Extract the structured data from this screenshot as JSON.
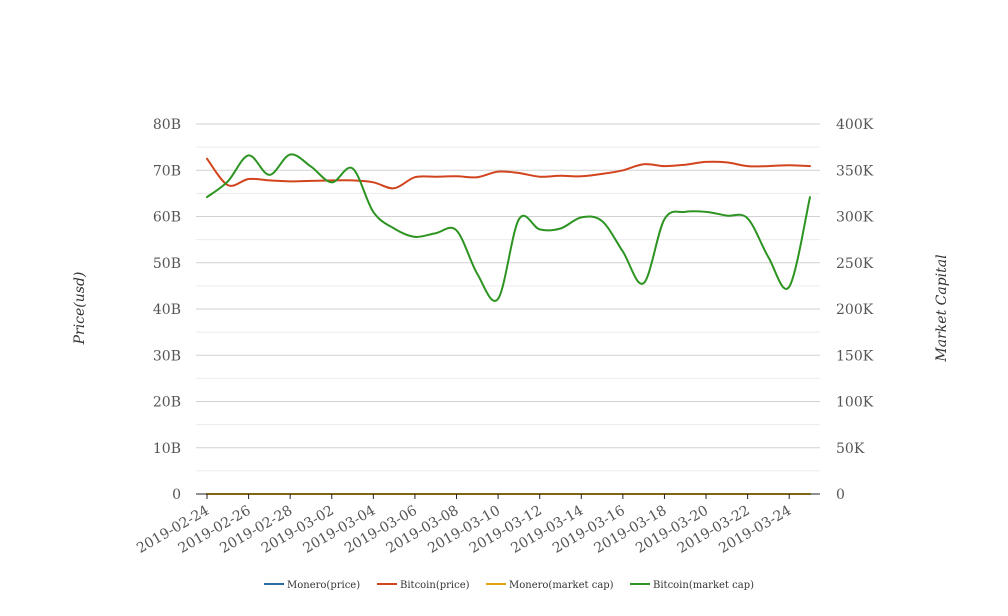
{
  "chart_data": {
    "type": "line",
    "left_axis": {
      "title": "Price(usd)",
      "ticks": [
        "0",
        "10B",
        "20B",
        "30B",
        "40B",
        "50B",
        "60B",
        "70B",
        "80B"
      ],
      "range": [
        0,
        80
      ]
    },
    "right_axis": {
      "title": "Market Capital",
      "ticks": [
        "0",
        "50K",
        "100K",
        "150K",
        "200K",
        "250K",
        "300K",
        "350K",
        "400K"
      ],
      "range": [
        0,
        400000
      ]
    },
    "x_tick_labels": [
      "2019-02-24",
      "2019-02-26",
      "2019-02-28",
      "2019-03-02",
      "2019-03-04",
      "2019-03-06",
      "2019-03-08",
      "2019-03-10",
      "2019-03-12",
      "2019-03-14",
      "2019-03-16",
      "2019-03-18",
      "2019-03-20",
      "2019-03-22",
      "2019-03-24"
    ],
    "x": [
      "2019-02-24",
      "2019-02-25",
      "2019-02-26",
      "2019-02-27",
      "2019-02-28",
      "2019-03-01",
      "2019-03-02",
      "2019-03-03",
      "2019-03-04",
      "2019-03-05",
      "2019-03-06",
      "2019-03-07",
      "2019-03-08",
      "2019-03-09",
      "2019-03-10",
      "2019-03-11",
      "2019-03-12",
      "2019-03-13",
      "2019-03-14",
      "2019-03-15",
      "2019-03-16",
      "2019-03-17",
      "2019-03-18",
      "2019-03-19",
      "2019-03-20",
      "2019-03-21",
      "2019-03-22",
      "2019-03-23",
      "2019-03-24",
      "2019-03-25"
    ],
    "grid": true,
    "legend_position": "bottom",
    "series": [
      {
        "name": "Monero(price)",
        "axis": "left",
        "color": "#2e6da4",
        "values": [
          0,
          0,
          0,
          0,
          0,
          0,
          0,
          0,
          0,
          0,
          0,
          0,
          0,
          0,
          0,
          0,
          0,
          0,
          0,
          0,
          0,
          0,
          0,
          0,
          0,
          0,
          0,
          0,
          0,
          0
        ]
      },
      {
        "name": "Bitcoin(price)",
        "axis": "left",
        "color": "#d2441e",
        "values": [
          72.5,
          66.8,
          68.1,
          67.8,
          67.6,
          67.7,
          67.8,
          67.8,
          67.4,
          66.1,
          68.5,
          68.6,
          68.7,
          68.5,
          69.7,
          69.4,
          68.6,
          68.8,
          68.7,
          69.2,
          70.0,
          71.3,
          70.9,
          71.2,
          71.8,
          71.7,
          70.9,
          70.9,
          71.1,
          70.9
        ]
      },
      {
        "name": "Monero(market cap)",
        "axis": "right",
        "color": "#e3a50c",
        "values": [
          0,
          0,
          0,
          0,
          0,
          0,
          0,
          0,
          0,
          0,
          0,
          0,
          0,
          0,
          0,
          0,
          0,
          0,
          0,
          0,
          0,
          0,
          0,
          0,
          0,
          0,
          0,
          0,
          0,
          0
        ]
      },
      {
        "name": "Bitcoin(market cap)",
        "axis": "right",
        "color": "#2d9422",
        "values": [
          321000,
          338000,
          366000,
          345000,
          367000,
          354000,
          337000,
          352000,
          305000,
          287000,
          278000,
          282000,
          285000,
          238000,
          211000,
          297000,
          286000,
          287000,
          299000,
          295000,
          262000,
          228000,
          297000,
          305000,
          305000,
          301000,
          298000,
          256000,
          224000,
          321000
        ]
      }
    ]
  }
}
